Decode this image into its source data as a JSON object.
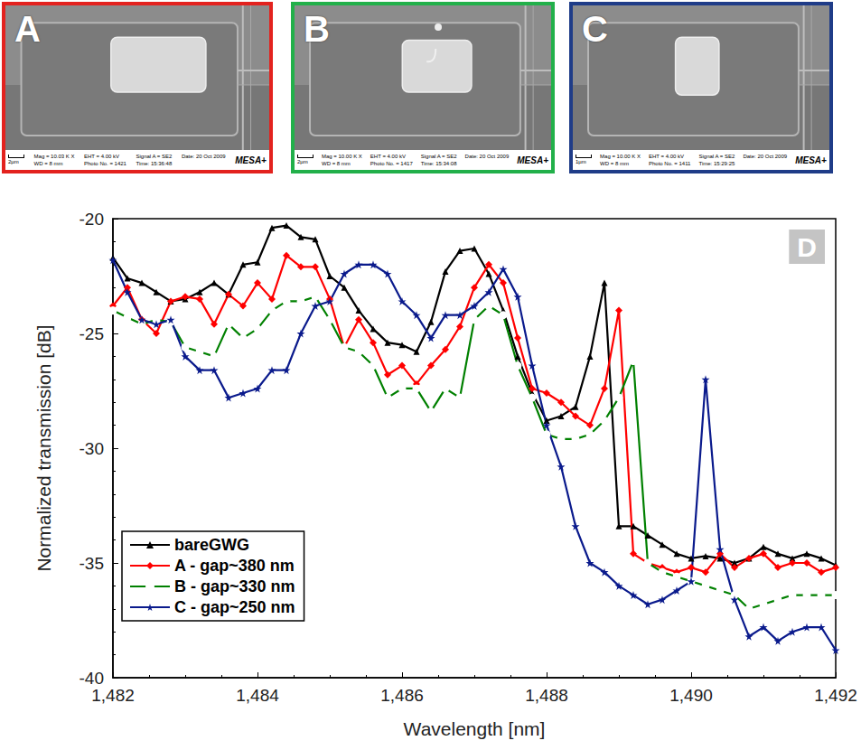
{
  "panels": [
    {
      "label": "A",
      "color": "#e3221e",
      "scale_bar": "2µm",
      "info": [
        "Mag = 10.03 K X",
        "EHT = 4.00 kV",
        "Signal A = SE2",
        "Date: 20 Oct 2009",
        "WD = 8 mm",
        "Photo No. = 1421",
        "Time: 15:36:48"
      ],
      "logo": "MESA+"
    },
    {
      "label": "B",
      "color": "#22b04a",
      "scale_bar": "2µm",
      "info": [
        "Mag = 10.00 K X",
        "EHT = 4.00 kV",
        "Signal A = SE2",
        "Date: 20 Oct 2009",
        "WD = 8 mm",
        "Photo No. = 1417",
        "Time: 15:34:08"
      ],
      "logo": "MESA+"
    },
    {
      "label": "C",
      "color": "#1f3c88",
      "scale_bar": "1µm",
      "info": [
        "Mag = 10.00 K X",
        "EHT = 4.00 kV",
        "Signal A = SE2",
        "Date: 20 Oct 2009",
        "WD = 8 mm",
        "Photo No. = 1411",
        "Time: 15:29:25"
      ],
      "logo": "MESA+"
    }
  ],
  "chart_data": {
    "type": "line",
    "panel_label": "D",
    "x_label": "Wavelength [nm]",
    "y_label": "Normalized transmission [dB]",
    "xlim": [
      1482,
      1492
    ],
    "xticks": [
      1482,
      1484,
      1486,
      1488,
      1490,
      1492
    ],
    "ylim": [
      -40,
      -20
    ],
    "yticks": [
      -40,
      -35,
      -30,
      -25,
      -20
    ],
    "grid": false,
    "legend": "lower left",
    "x": [
      1482.0,
      1482.2,
      1482.4,
      1482.6,
      1482.8,
      1483.0,
      1483.2,
      1483.4,
      1483.6,
      1483.8,
      1484.0,
      1484.2,
      1484.4,
      1484.6,
      1484.8,
      1485.0,
      1485.2,
      1485.4,
      1485.6,
      1485.8,
      1486.0,
      1486.2,
      1486.4,
      1486.6,
      1486.8,
      1487.0,
      1487.2,
      1487.4,
      1487.6,
      1487.8,
      1488.0,
      1488.2,
      1488.4,
      1488.6,
      1488.8,
      1489.0,
      1489.2,
      1489.4,
      1489.6,
      1489.8,
      1490.0,
      1490.2,
      1490.4,
      1490.6,
      1490.8,
      1491.0,
      1491.2,
      1491.4,
      1491.6,
      1491.8,
      1492.0
    ],
    "series": [
      {
        "name": "bareGWG",
        "color": "#000000",
        "marker": "triangle",
        "line_style": "solid",
        "values": [
          -21.7,
          -22.6,
          -22.8,
          -23.2,
          -23.6,
          -23.5,
          -23.2,
          -22.8,
          -23.3,
          -22.0,
          -21.9,
          -20.4,
          -20.3,
          -20.8,
          -20.9,
          -22.5,
          -23.0,
          -24.0,
          -24.8,
          -25.4,
          -25.5,
          -25.8,
          -24.5,
          -22.3,
          -21.4,
          -21.3,
          -22.4,
          -24.0,
          -26.0,
          -27.6,
          -28.8,
          -28.6,
          -28.2,
          -26.0,
          -22.8,
          -33.4,
          -33.4,
          -33.8,
          -34.2,
          -34.6,
          -34.8,
          -34.7,
          -34.8,
          -35.0,
          -34.8,
          -34.3,
          -34.6,
          -34.8,
          -34.6,
          -34.8,
          -35.1
        ]
      },
      {
        "name": "A - gap~380 nm",
        "color": "#ff0000",
        "marker": "diamond",
        "line_style": "solid",
        "values": [
          -23.8,
          -23.0,
          -24.4,
          -25.0,
          -23.6,
          -23.4,
          -23.5,
          -24.6,
          -23.3,
          -23.8,
          -22.8,
          -23.5,
          -21.6,
          -22.1,
          -22.1,
          -23.5,
          -25.6,
          -24.4,
          -25.4,
          -26.8,
          -26.4,
          -27.2,
          -26.4,
          -25.7,
          -24.7,
          -23.0,
          -22.0,
          -22.8,
          -25.2,
          -27.4,
          -27.6,
          -28.0,
          -28.6,
          -29.0,
          -27.4,
          -24.0,
          -34.6,
          -35.0,
          -35.2,
          -35.4,
          -35.2,
          -35.4,
          -34.6,
          -35.2,
          -34.8,
          -34.6,
          -35.2,
          -35.0,
          -35.0,
          -35.4,
          -35.2
        ]
      },
      {
        "name": "B - gap~330 nm",
        "color": "#008000",
        "marker": "circle",
        "line_style": "solid",
        "values": [
          -24.0,
          -24.3,
          -24.6,
          -24.4,
          -24.5,
          -25.6,
          -25.8,
          -26.0,
          -24.6,
          -25.2,
          -24.8,
          -24.0,
          -23.6,
          -23.6,
          -23.4,
          -24.4,
          -25.6,
          -25.8,
          -26.4,
          -27.8,
          -27.4,
          -27.4,
          -28.4,
          -27.4,
          -27.8,
          -24.4,
          -23.8,
          -24.2,
          -26.4,
          -27.8,
          -29.4,
          -29.6,
          -29.6,
          -29.4,
          -28.8,
          -27.8,
          -26.2,
          -35.0,
          -35.4,
          -35.6,
          -35.8,
          -36.0,
          -36.2,
          -36.4,
          -37.0,
          -36.8,
          -36.6,
          -36.4,
          -36.4,
          -36.4,
          -36.4
        ]
      },
      {
        "name": "C - gap~250 nm",
        "color": "#0a1a8c",
        "marker": "star",
        "line_style": "solid",
        "values": [
          -21.8,
          -23.2,
          -24.4,
          -24.6,
          -24.4,
          -26.0,
          -26.6,
          -26.6,
          -27.8,
          -27.6,
          -27.4,
          -26.6,
          -26.6,
          -25.0,
          -23.8,
          -23.6,
          -22.4,
          -22.0,
          -22.0,
          -22.4,
          -23.6,
          -24.2,
          -25.2,
          -24.2,
          -24.2,
          -23.8,
          -23.2,
          -22.2,
          -23.4,
          -26.4,
          -29.0,
          -30.8,
          -33.4,
          -35.0,
          -35.4,
          -36.0,
          -36.4,
          -36.8,
          -36.6,
          -36.2,
          -35.8,
          -27.0,
          -34.4,
          -36.6,
          -38.2,
          -37.8,
          -38.4,
          -38.0,
          -37.8,
          -37.8,
          -38.8
        ]
      }
    ]
  }
}
